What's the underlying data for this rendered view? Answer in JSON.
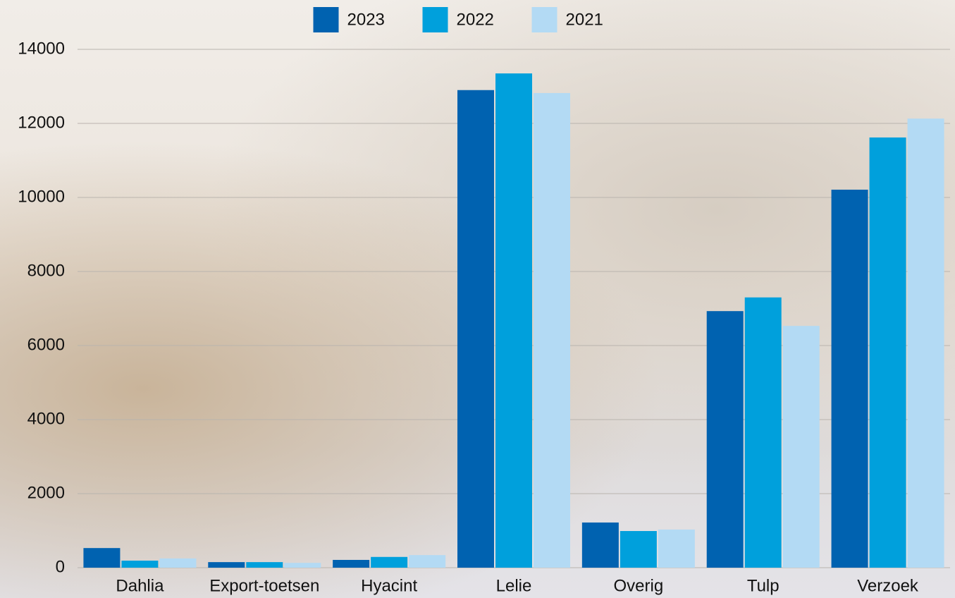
{
  "chart_data": {
    "type": "bar",
    "categories": [
      "Dahlia",
      "Export-toetsen",
      "Hyacint",
      "Lelie",
      "Overig",
      "Tulp",
      "Verzoek"
    ],
    "series": [
      {
        "name": "2023",
        "color": "#0062b0",
        "values": [
          530,
          150,
          210,
          12900,
          1220,
          6930,
          10210
        ]
      },
      {
        "name": "2022",
        "color": "#00a0dc",
        "values": [
          190,
          150,
          290,
          13350,
          990,
          7300,
          11620
        ]
      },
      {
        "name": "2021",
        "color": "#b3daf4",
        "values": [
          250,
          130,
          340,
          12820,
          1030,
          6530,
          12130
        ]
      }
    ],
    "ylim": [
      0,
      14000
    ],
    "yticks": [
      0,
      2000,
      4000,
      6000,
      8000,
      10000,
      12000,
      14000
    ],
    "grid": true,
    "legend": "top"
  }
}
